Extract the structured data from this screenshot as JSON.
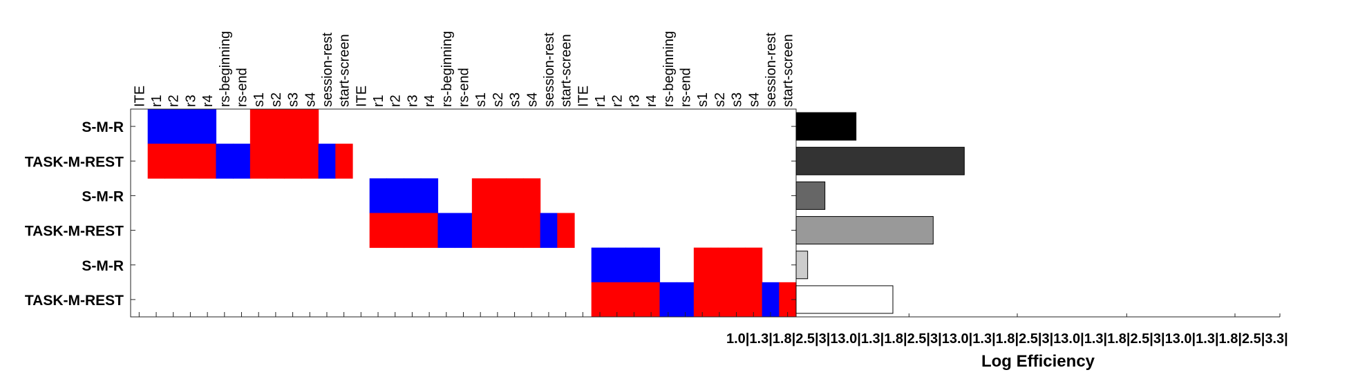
{
  "chart_data": [
    {
      "type": "heatmap",
      "columns": [
        "ITE",
        "r1",
        "r2",
        "r3",
        "r4",
        "rs-beginning",
        "rs-end",
        "s1",
        "s2",
        "s3",
        "s4",
        "session-rest",
        "start-screen",
        "ITE",
        "r1",
        "r2",
        "r3",
        "r4",
        "rs-beginning",
        "rs-end",
        "s1",
        "s2",
        "s3",
        "s4",
        "session-rest",
        "start-screen",
        "ITE",
        "r1",
        "r2",
        "r3",
        "r4",
        "rs-beginning",
        "rs-end",
        "s1",
        "s2",
        "s3",
        "s4",
        "session-rest",
        "start-screen"
      ],
      "rows": [
        "S-M-R",
        "TASK-M-REST",
        "S-M-R",
        "TASK-M-REST",
        "S-M-R",
        "TASK-M-REST"
      ],
      "colors": {
        "positive": "#ff0000",
        "negative": "#0000ff",
        "zero": "#ffffff"
      },
      "values": [
        [
          0,
          -1,
          -1,
          -1,
          -1,
          0,
          0,
          1,
          1,
          1,
          1,
          0,
          0,
          0,
          0,
          0,
          0,
          0,
          0,
          0,
          0,
          0,
          0,
          0,
          0,
          0,
          0,
          0,
          0,
          0,
          0,
          0,
          0,
          0,
          0,
          0,
          0,
          0,
          0
        ],
        [
          0,
          1,
          1,
          1,
          1,
          -1,
          -1,
          1,
          1,
          1,
          1,
          -1,
          1,
          0,
          0,
          0,
          0,
          0,
          0,
          0,
          0,
          0,
          0,
          0,
          0,
          0,
          0,
          0,
          0,
          0,
          0,
          0,
          0,
          0,
          0,
          0,
          0,
          0,
          0
        ],
        [
          0,
          0,
          0,
          0,
          0,
          0,
          0,
          0,
          0,
          0,
          0,
          0,
          0,
          0,
          -1,
          -1,
          -1,
          -1,
          0,
          0,
          1,
          1,
          1,
          1,
          0,
          0,
          0,
          0,
          0,
          0,
          0,
          0,
          0,
          0,
          0,
          0,
          0,
          0,
          0
        ],
        [
          0,
          0,
          0,
          0,
          0,
          0,
          0,
          0,
          0,
          0,
          0,
          0,
          0,
          0,
          1,
          1,
          1,
          1,
          -1,
          -1,
          1,
          1,
          1,
          1,
          -1,
          1,
          0,
          0,
          0,
          0,
          0,
          0,
          0,
          0,
          0,
          0,
          0,
          0,
          0
        ],
        [
          0,
          0,
          0,
          0,
          0,
          0,
          0,
          0,
          0,
          0,
          0,
          0,
          0,
          0,
          0,
          0,
          0,
          0,
          0,
          0,
          0,
          0,
          0,
          0,
          0,
          0,
          0,
          -1,
          -1,
          -1,
          -1,
          0,
          0,
          1,
          1,
          1,
          1,
          0,
          0
        ],
        [
          0,
          0,
          0,
          0,
          0,
          0,
          0,
          0,
          0,
          0,
          0,
          0,
          0,
          0,
          0,
          0,
          0,
          0,
          0,
          0,
          0,
          0,
          0,
          0,
          0,
          0,
          0,
          1,
          1,
          1,
          1,
          -1,
          -1,
          1,
          1,
          1,
          1,
          -1,
          1
        ]
      ]
    },
    {
      "type": "bar",
      "orientation": "horizontal",
      "xlabel": "Log Efficiency",
      "xlim": [
        0,
        4.2
      ],
      "tick_label_text": "1.0|1.3|1.8|2.5|3|13.0|1.3|1.8|2.5|3|13.0|1.3|1.8|2.5|3|13.0|1.3|1.8|2.5|3|13.0|1.3|1.8|2.5|3.3|",
      "tick_values": [
        0.98,
        1.92,
        2.87,
        3.81
      ],
      "values": [
        0.52,
        1.46,
        0.25,
        1.19,
        0.1,
        0.84
      ],
      "colors": [
        "#000000",
        "#333333",
        "#666666",
        "#999999",
        "#cccccc",
        "#ffffff"
      ]
    }
  ]
}
